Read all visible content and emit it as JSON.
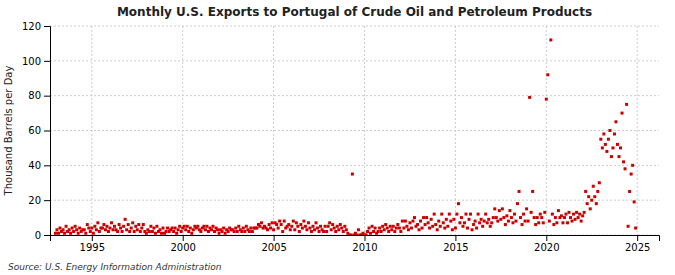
{
  "chart_data": {
    "type": "scatter",
    "title": "Monthly U.S. Exports to Portugal of Crude Oil and Petroleum Products",
    "y_label": "Thousand Barrels per Day",
    "annotations": [
      "Source: U.S. Energy Information Administration"
    ],
    "color": "#cc0000",
    "marker": "square",
    "grid": true,
    "xlim": [
      1992.7,
      2026.2
    ],
    "xticks": [
      1995,
      2000,
      2005,
      2010,
      2015,
      2020,
      2025
    ],
    "ylim": [
      0,
      120
    ],
    "yticks": [
      0,
      20,
      40,
      60,
      80,
      100,
      120
    ],
    "x": [
      1993.0,
      1993.083,
      1993.167,
      1993.25,
      1993.333,
      1993.417,
      1993.5,
      1993.583,
      1993.667,
      1993.75,
      1993.833,
      1993.917,
      1994.0,
      1994.083,
      1994.167,
      1994.25,
      1994.333,
      1994.417,
      1994.5,
      1994.583,
      1994.667,
      1994.75,
      1994.833,
      1994.917,
      1995.0,
      1995.083,
      1995.167,
      1995.25,
      1995.333,
      1995.417,
      1995.5,
      1995.583,
      1995.667,
      1995.75,
      1995.833,
      1995.917,
      1996.0,
      1996.083,
      1996.167,
      1996.25,
      1996.333,
      1996.417,
      1996.5,
      1996.583,
      1996.667,
      1996.75,
      1996.833,
      1996.917,
      1997.0,
      1997.083,
      1997.167,
      1997.25,
      1997.333,
      1997.417,
      1997.5,
      1997.583,
      1997.667,
      1997.75,
      1997.833,
      1997.917,
      1998.0,
      1998.083,
      1998.167,
      1998.25,
      1998.333,
      1998.417,
      1998.5,
      1998.583,
      1998.667,
      1998.75,
      1998.833,
      1998.917,
      1999.0,
      1999.083,
      1999.167,
      1999.25,
      1999.333,
      1999.417,
      1999.5,
      1999.583,
      1999.667,
      1999.75,
      1999.833,
      1999.917,
      2000.0,
      2000.083,
      2000.167,
      2000.25,
      2000.333,
      2000.417,
      2000.5,
      2000.583,
      2000.667,
      2000.75,
      2000.833,
      2000.917,
      2001.0,
      2001.083,
      2001.167,
      2001.25,
      2001.333,
      2001.417,
      2001.5,
      2001.583,
      2001.667,
      2001.75,
      2001.833,
      2001.917,
      2002.0,
      2002.083,
      2002.167,
      2002.25,
      2002.333,
      2002.417,
      2002.5,
      2002.583,
      2002.667,
      2002.75,
      2002.833,
      2002.917,
      2003.0,
      2003.083,
      2003.167,
      2003.25,
      2003.333,
      2003.417,
      2003.5,
      2003.583,
      2003.667,
      2003.75,
      2003.833,
      2003.917,
      2004.0,
      2004.083,
      2004.167,
      2004.25,
      2004.333,
      2004.417,
      2004.5,
      2004.583,
      2004.667,
      2004.75,
      2004.833,
      2004.917,
      2005.0,
      2005.083,
      2005.167,
      2005.25,
      2005.333,
      2005.417,
      2005.5,
      2005.583,
      2005.667,
      2005.75,
      2005.833,
      2005.917,
      2006.0,
      2006.083,
      2006.167,
      2006.25,
      2006.333,
      2006.417,
      2006.5,
      2006.583,
      2006.667,
      2006.75,
      2006.833,
      2006.917,
      2007.0,
      2007.083,
      2007.167,
      2007.25,
      2007.333,
      2007.417,
      2007.5,
      2007.583,
      2007.667,
      2007.75,
      2007.833,
      2007.917,
      2008.0,
      2008.083,
      2008.167,
      2008.25,
      2008.333,
      2008.417,
      2008.5,
      2008.583,
      2008.667,
      2008.75,
      2008.833,
      2008.917,
      2009.0,
      2009.083,
      2009.167,
      2009.25,
      2009.333,
      2009.417,
      2009.5,
      2009.583,
      2009.667,
      2009.75,
      2009.833,
      2009.917,
      2010.0,
      2010.083,
      2010.167,
      2010.25,
      2010.333,
      2010.417,
      2010.5,
      2010.583,
      2010.667,
      2010.75,
      2010.833,
      2010.917,
      2011.0,
      2011.083,
      2011.167,
      2011.25,
      2011.333,
      2011.417,
      2011.5,
      2011.583,
      2011.667,
      2011.75,
      2011.833,
      2011.917,
      2012.0,
      2012.083,
      2012.167,
      2012.25,
      2012.333,
      2012.417,
      2012.5,
      2012.583,
      2012.667,
      2012.75,
      2012.833,
      2012.917,
      2013.0,
      2013.083,
      2013.167,
      2013.25,
      2013.333,
      2013.417,
      2013.5,
      2013.583,
      2013.667,
      2013.75,
      2013.833,
      2013.917,
      2014.0,
      2014.083,
      2014.167,
      2014.25,
      2014.333,
      2014.417,
      2014.5,
      2014.583,
      2014.667,
      2014.75,
      2014.833,
      2014.917,
      2015.0,
      2015.083,
      2015.167,
      2015.25,
      2015.333,
      2015.417,
      2015.5,
      2015.583,
      2015.667,
      2015.75,
      2015.833,
      2015.917,
      2016.0,
      2016.083,
      2016.167,
      2016.25,
      2016.333,
      2016.417,
      2016.5,
      2016.583,
      2016.667,
      2016.75,
      2016.833,
      2016.917,
      2017.0,
      2017.083,
      2017.167,
      2017.25,
      2017.333,
      2017.417,
      2017.5,
      2017.583,
      2017.667,
      2017.75,
      2017.833,
      2017.917,
      2018.0,
      2018.083,
      2018.167,
      2018.25,
      2018.333,
      2018.417,
      2018.5,
      2018.583,
      2018.667,
      2018.75,
      2018.833,
      2018.917,
      2019.0,
      2019.083,
      2019.167,
      2019.25,
      2019.333,
      2019.417,
      2019.5,
      2019.583,
      2019.667,
      2019.75,
      2019.833,
      2019.917,
      2020.0,
      2020.083,
      2020.167,
      2020.25,
      2020.333,
      2020.417,
      2020.5,
      2020.583,
      2020.667,
      2020.75,
      2020.833,
      2020.917,
      2021.0,
      2021.083,
      2021.167,
      2021.25,
      2021.333,
      2021.417,
      2021.5,
      2021.583,
      2021.667,
      2021.75,
      2021.833,
      2021.917,
      2022.0,
      2022.083,
      2022.167,
      2022.25,
      2022.333,
      2022.417,
      2022.5,
      2022.583,
      2022.667,
      2022.75,
      2022.833,
      2022.917,
      2023.0,
      2023.083,
      2023.167,
      2023.25,
      2023.333,
      2023.417,
      2023.5,
      2023.583,
      2023.667,
      2023.75,
      2023.833,
      2023.917,
      2024.0,
      2024.083,
      2024.167,
      2024.25,
      2024.333,
      2024.417,
      2024.5,
      2024.583,
      2024.667,
      2024.75,
      2024.833,
      2024.917
    ],
    "values": [
      1,
      3,
      1,
      4,
      2,
      3,
      1,
      5,
      2,
      3,
      1,
      4,
      2,
      5,
      3,
      1,
      4,
      2,
      3,
      3,
      1,
      6,
      4,
      2,
      4,
      1,
      5,
      3,
      7,
      2,
      4,
      4,
      6,
      3,
      5,
      2,
      4,
      7,
      3,
      5,
      3,
      2,
      6,
      4,
      2,
      5,
      9,
      3,
      6,
      2,
      4,
      7,
      2,
      5,
      3,
      6,
      2,
      4,
      6,
      2,
      1,
      3,
      2,
      5,
      2,
      4,
      1,
      5,
      2,
      3,
      1,
      4,
      1,
      2,
      4,
      2,
      3,
      4,
      2,
      4,
      1,
      3,
      5,
      2,
      4,
      5,
      3,
      5,
      2,
      4,
      1,
      3,
      5,
      4,
      5,
      3,
      2,
      4,
      5,
      3,
      5,
      2,
      4,
      3,
      5,
      2,
      4,
      3,
      1,
      3,
      2,
      4,
      1,
      3,
      2,
      4,
      3,
      3,
      2,
      4,
      2,
      5,
      3,
      2,
      4,
      2,
      5,
      3,
      2,
      4,
      2,
      4,
      4,
      4,
      6,
      5,
      7,
      4,
      5,
      4,
      3,
      6,
      4,
      7,
      3,
      7,
      6,
      4,
      8,
      6,
      2,
      8,
      4,
      5,
      6,
      3,
      5,
      8,
      3,
      7,
      5,
      2,
      6,
      4,
      8,
      5,
      3,
      7,
      4,
      2,
      5,
      3,
      7,
      4,
      2,
      5,
      3,
      2,
      5,
      2,
      5,
      7,
      3,
      6,
      4,
      2,
      5,
      3,
      6,
      4,
      2,
      5,
      3,
      1,
      0,
      0,
      35,
      0,
      1,
      0,
      3,
      0,
      0,
      1,
      0,
      0,
      2,
      4,
      1,
      5,
      2,
      4,
      1,
      2,
      4,
      2,
      5,
      3,
      6,
      4,
      2,
      5,
      3,
      5,
      2,
      4,
      6,
      4,
      2,
      8,
      4,
      8,
      5,
      3,
      7,
      4,
      8,
      10,
      5,
      6,
      3,
      8,
      4,
      10,
      6,
      10,
      7,
      4,
      9,
      5,
      12,
      6,
      3,
      8,
      5,
      12,
      7,
      4,
      9,
      5,
      12,
      8,
      3,
      9,
      4,
      12,
      18,
      7,
      10,
      5,
      7,
      12,
      4,
      9,
      12,
      3,
      6,
      8,
      4,
      12,
      7,
      9,
      5,
      8,
      12,
      7,
      9,
      5,
      7,
      10,
      15,
      10,
      8,
      14,
      9,
      15,
      10,
      6,
      11,
      8,
      14,
      10,
      7,
      12,
      8,
      18,
      25,
      10,
      6,
      12,
      8,
      15,
      8,
      79,
      13,
      25,
      10,
      6,
      10,
      7,
      12,
      10,
      7,
      13,
      78,
      92,
      8,
      112,
      12,
      6,
      10,
      7,
      14,
      10,
      11,
      7,
      10,
      12,
      7,
      13,
      10,
      8,
      12,
      9,
      13,
      10,
      12,
      8,
      11,
      13,
      25,
      18,
      22,
      15,
      20,
      28,
      22,
      18,
      25,
      30,
      55,
      50,
      58,
      52,
      48,
      55,
      60,
      45,
      50,
      58,
      65,
      52,
      45,
      50,
      70,
      42,
      38,
      75,
      5,
      25,
      35,
      40,
      19,
      4
    ]
  }
}
